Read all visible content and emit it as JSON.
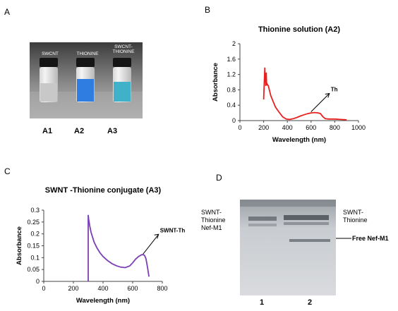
{
  "panels": {
    "A": {
      "letter": "A",
      "vial_labels": [
        "SWCNT",
        "THIONINE",
        "SWCNT-\nTHIONINE"
      ],
      "sample_labels": [
        "A1",
        "A2",
        "A3"
      ]
    },
    "B": {
      "letter": "B"
    },
    "C": {
      "letter": "C"
    },
    "D": {
      "letter": "D",
      "left_label": "SWNT-\nThionine\nNef-M1",
      "right_label": "SWNT-\nThionine",
      "band_label": "Free Nef-M1",
      "lane_labels": [
        "1",
        "2"
      ]
    }
  },
  "colors": {
    "spectrum_B": "#e8201e",
    "spectrum_C": "#7b3fb5",
    "liquid_A2": "#2f7de0",
    "liquid_A3": "#3fb1c8"
  },
  "chart_data": [
    {
      "type": "line",
      "title": "Thionine solution  (A2)",
      "xlabel": "Wavelength (nm)",
      "ylabel": "Absorbance",
      "xlim": [
        0,
        1000
      ],
      "ylim": [
        0,
        2
      ],
      "xticks": [
        "0",
        "200",
        "400",
        "600",
        "800",
        "1000"
      ],
      "yticks": [
        "0",
        "0.4",
        "0.8",
        "1.2",
        "1.6",
        "2"
      ],
      "annotation": "Th",
      "series": [
        {
          "x": [
            200,
            205,
            210,
            212,
            215,
            218,
            222,
            225,
            230,
            240,
            260,
            280,
            300,
            330,
            360,
            390,
            420,
            450,
            480,
            510,
            540,
            570,
            600,
            630,
            660,
            680,
            700,
            720,
            750,
            800,
            850,
            900
          ],
          "y": [
            0.55,
            0.95,
            1.38,
            1.05,
            1.15,
            0.9,
            1.25,
            0.92,
            0.95,
            0.9,
            0.65,
            0.5,
            0.35,
            0.22,
            0.1,
            0.04,
            0.03,
            0.05,
            0.08,
            0.12,
            0.15,
            0.18,
            0.2,
            0.21,
            0.2,
            0.18,
            0.1,
            0.05,
            0.04,
            0.04,
            0.03,
            0.02
          ]
        }
      ]
    },
    {
      "type": "line",
      "title": "SWNT -Thionine conjugate  (A3)",
      "xlabel": "Wavelength (nm)",
      "ylabel": "Absorbance",
      "xlim": [
        0,
        800
      ],
      "ylim": [
        0,
        0.3
      ],
      "xticks": [
        "0",
        "200",
        "400",
        "600",
        "800"
      ],
      "yticks": [
        "0",
        "0.05",
        "0.1",
        "0.15",
        "0.2",
        "0.25",
        "0.3"
      ],
      "annotation": "SWNT-Th",
      "series": [
        {
          "x": [
            300,
            303,
            306,
            310,
            315,
            320,
            330,
            340,
            360,
            380,
            400,
            430,
            460,
            490,
            520,
            550,
            580,
            600,
            620,
            640,
            660,
            670,
            680,
            690,
            700,
            710
          ],
          "y": [
            0.28,
            0.262,
            0.25,
            0.235,
            0.22,
            0.205,
            0.185,
            0.165,
            0.14,
            0.12,
            0.105,
            0.088,
            0.075,
            0.066,
            0.06,
            0.058,
            0.065,
            0.078,
            0.094,
            0.105,
            0.112,
            0.113,
            0.11,
            0.095,
            0.06,
            0.02
          ]
        }
      ]
    }
  ]
}
